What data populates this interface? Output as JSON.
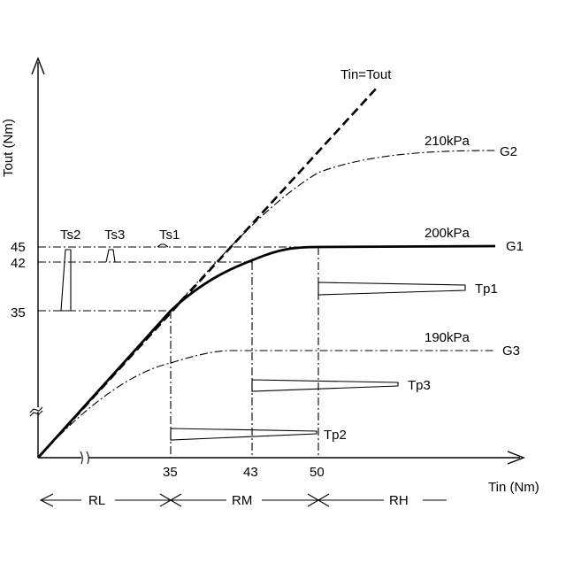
{
  "axes": {
    "x_label": "Tin (Nm)",
    "y_label": "Tout (Nm)",
    "x_ticks": [
      "35",
      "43",
      "50"
    ],
    "y_ticks": [
      "45",
      "42",
      "35"
    ]
  },
  "curves": {
    "identity_label": "Tin=Tout",
    "g2_pressure": "210kPa",
    "g2_name": "G2",
    "g1_pressure": "200kPa",
    "g1_name": "G1",
    "g3_pressure": "190kPa",
    "g3_name": "G3"
  },
  "spikes": {
    "ts2": "Ts2",
    "ts3": "Ts3",
    "ts1": "Ts1"
  },
  "pulses": {
    "tp1": "Tp1",
    "tp3": "Tp3",
    "tp2": "Tp2"
  },
  "regions": {
    "rl": "RL",
    "rm": "RM",
    "rh": "RH"
  }
}
